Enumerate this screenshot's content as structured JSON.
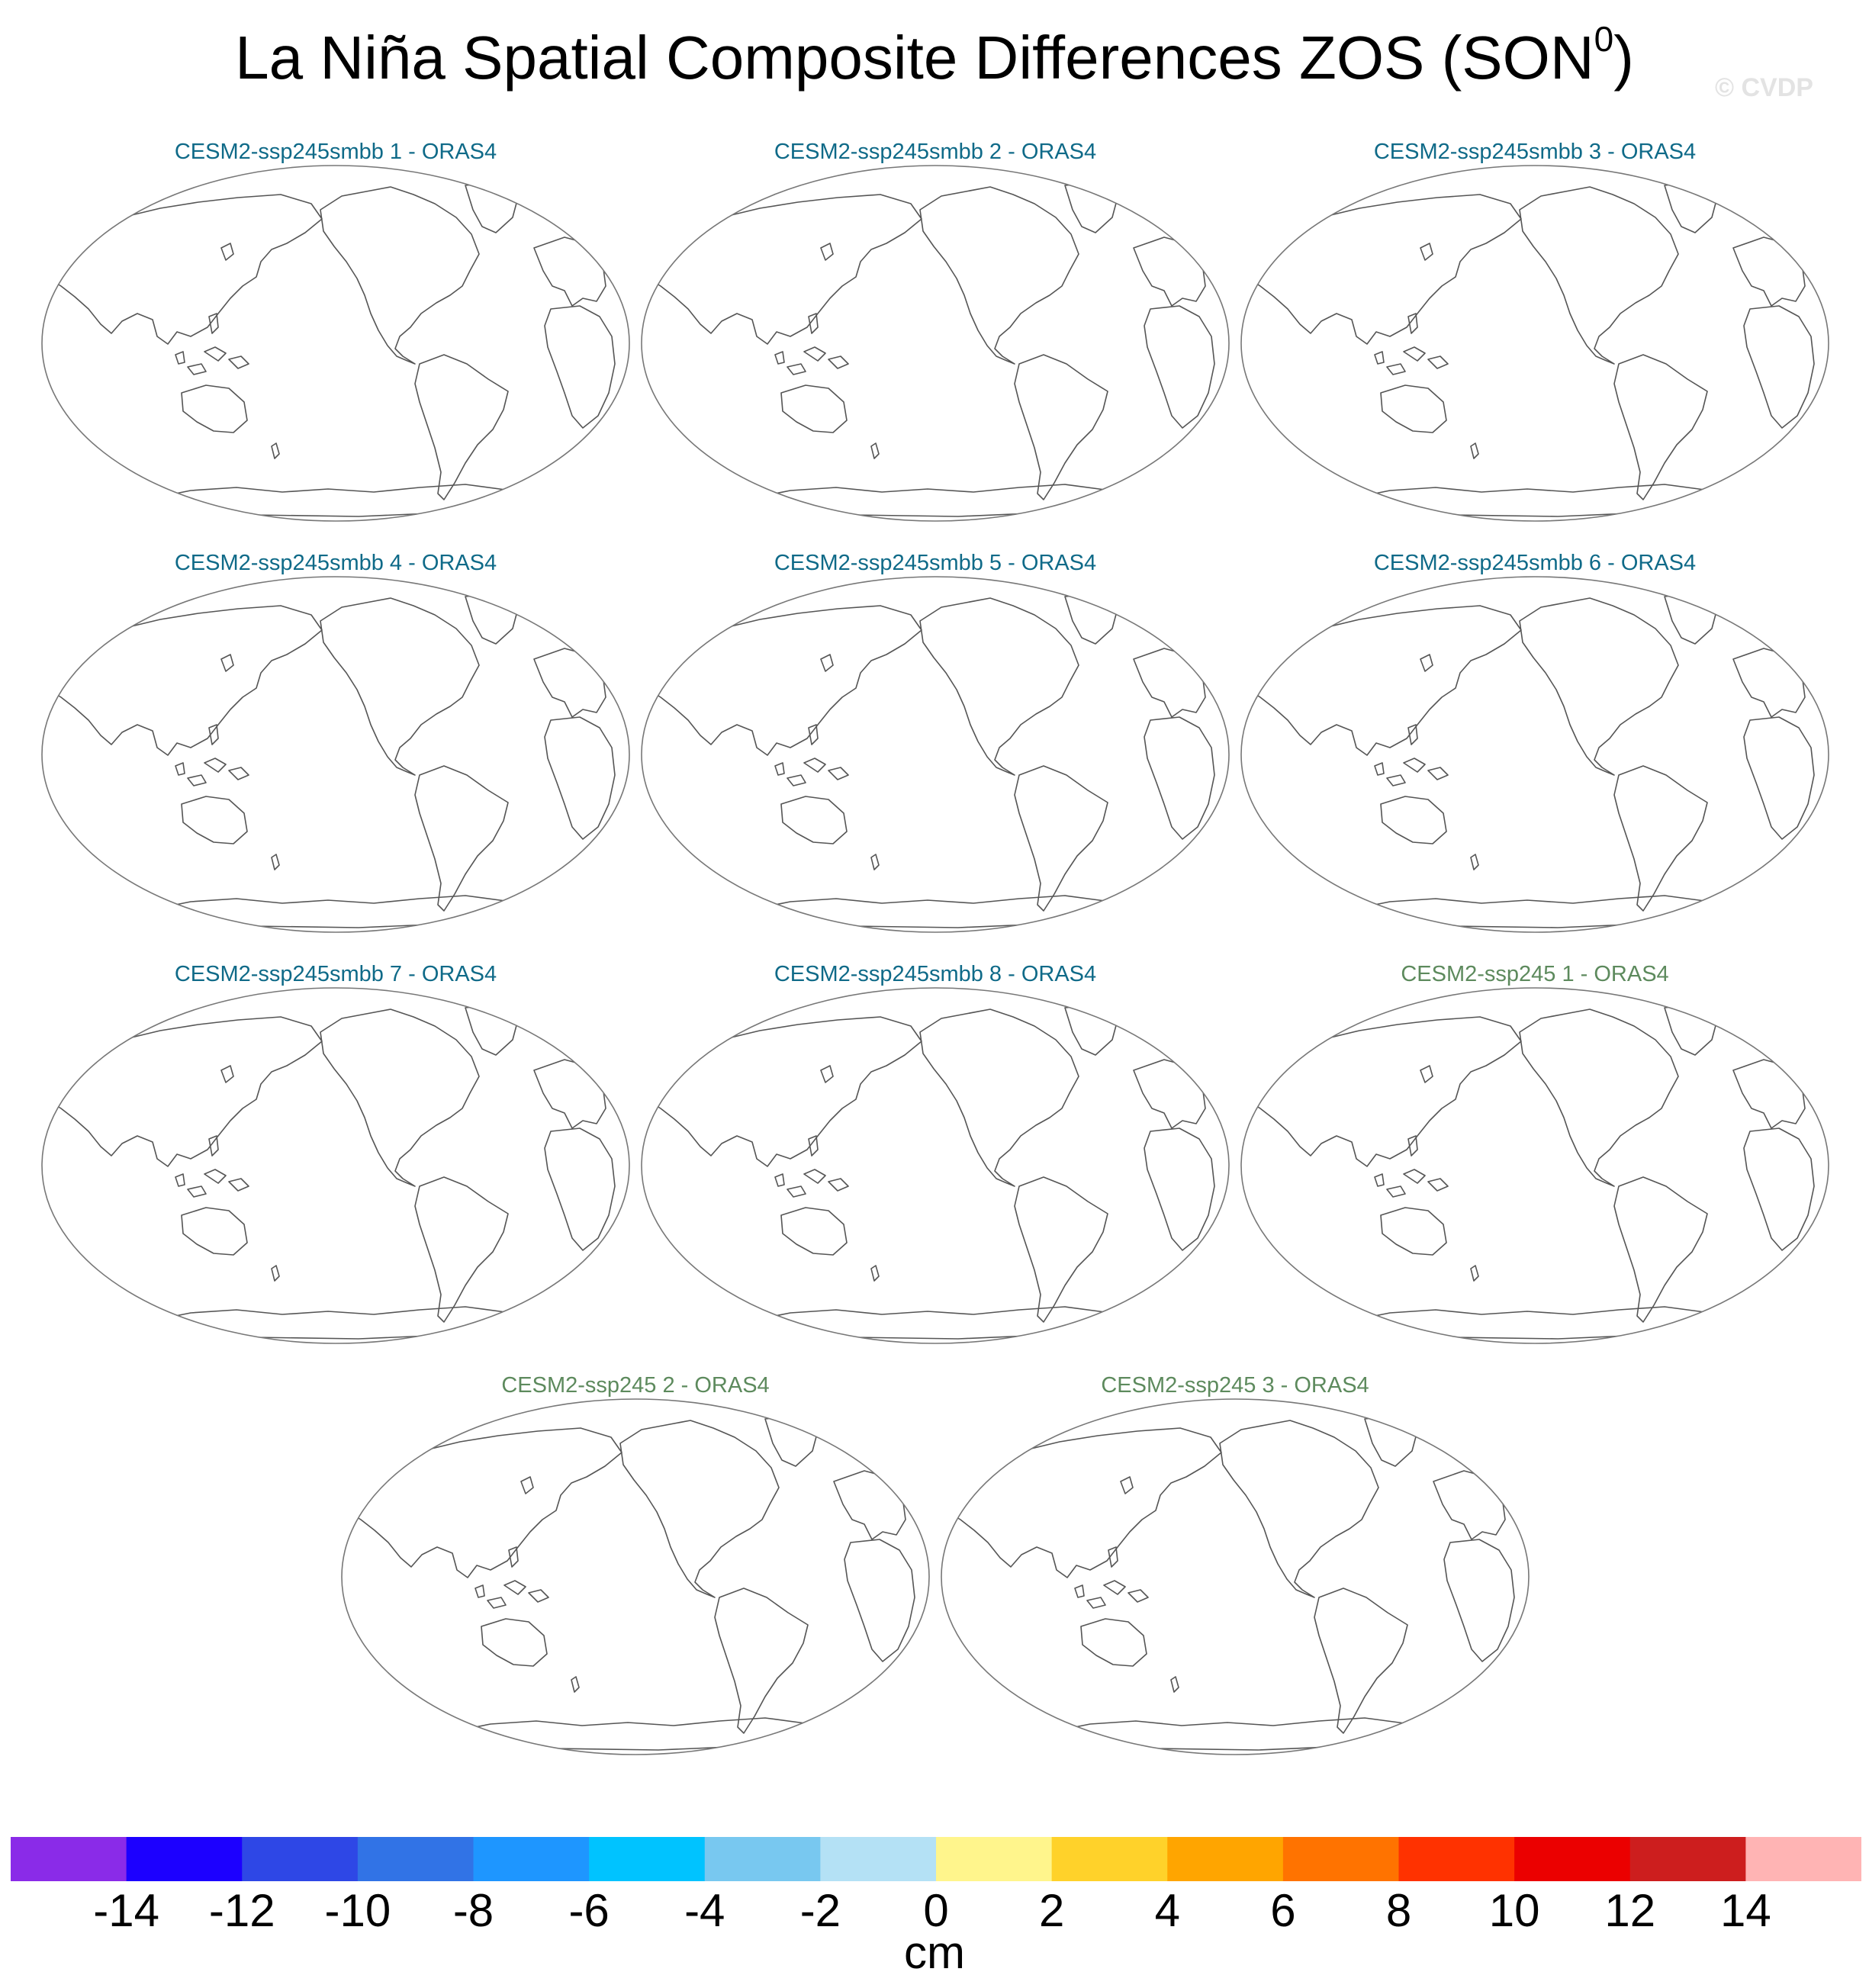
{
  "title": {
    "main": "La Niña Spatial Composite Differences ZOS (SON",
    "superscript": "0",
    "close": ")"
  },
  "watermark": "© CVDP",
  "panels": [
    {
      "label": "CESM2-ssp245smbb 1 - ORAS4",
      "color": "#0f6a88"
    },
    {
      "label": "CESM2-ssp245smbb 2 - ORAS4",
      "color": "#0f6a88"
    },
    {
      "label": "CESM2-ssp245smbb 3 - ORAS4",
      "color": "#0f6a88"
    },
    {
      "label": "CESM2-ssp245smbb 4 - ORAS4",
      "color": "#0f6a88"
    },
    {
      "label": "CESM2-ssp245smbb 5 - ORAS4",
      "color": "#0f6a88"
    },
    {
      "label": "CESM2-ssp245smbb 6 - ORAS4",
      "color": "#0f6a88"
    },
    {
      "label": "CESM2-ssp245smbb 7 - ORAS4",
      "color": "#0f6a88"
    },
    {
      "label": "CESM2-ssp245smbb 8 - ORAS4",
      "color": "#0f6a88"
    },
    {
      "label": "CESM2-ssp245 1 - ORAS4",
      "color": "#5d8a5d"
    },
    {
      "label": "CESM2-ssp245 2 - ORAS4",
      "color": "#5d8a5d"
    },
    {
      "label": "CESM2-ssp245 3 - ORAS4",
      "color": "#5d8a5d"
    }
  ],
  "colorbar": {
    "colors": [
      "#8a2be8",
      "#1c00ff",
      "#2e47e6",
      "#3173e6",
      "#1e96ff",
      "#00c3ff",
      "#78c8f0",
      "#b4e1f5",
      "#fff58c",
      "#ffd22a",
      "#ffa500",
      "#ff7300",
      "#ff3200",
      "#eb0000",
      "#cd1e1e",
      "#ffb4b4"
    ],
    "ticks": [
      "-14",
      "-12",
      "-10",
      "-8",
      "-6",
      "-4",
      "-2",
      "0",
      "2",
      "4",
      "6",
      "8",
      "10",
      "12",
      "14"
    ],
    "units": "cm"
  }
}
